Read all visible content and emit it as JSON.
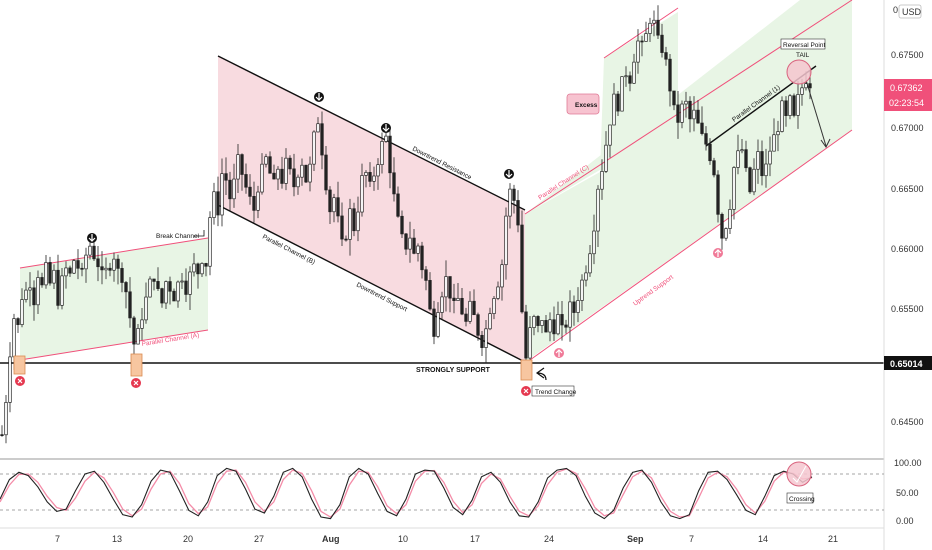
{
  "header": {
    "currency_label": "USD"
  },
  "colors": {
    "channel_green_fill": "#e8f5e5",
    "channel_pink_fill": "#f8dbe0",
    "pink_line": "#f0507a",
    "black_line": "#111111",
    "price_tag": "#f0507a",
    "support_tag": "#111111",
    "marker_red": "#e53950",
    "marker_pink": "#f07a98",
    "box_orange": "#f7c6a0",
    "stoch_k": "#222222",
    "stoch_d": "#f48ca8"
  },
  "chart_data": [
    {
      "type": "candlestick",
      "title": "",
      "yaxis": {
        "ticks": [
          "0.64500",
          "0.65000",
          "0.65500",
          "0.66000",
          "0.66500",
          "0.67000",
          "0.67500"
        ],
        "top_label": "0.",
        "range": [
          0.6425,
          0.6805
        ]
      },
      "xaxis": {
        "ticks": [
          "7",
          "13",
          "20",
          "27",
          "Aug",
          "10",
          "17",
          "24",
          "Sep",
          "7",
          "14",
          "21"
        ]
      },
      "last_price": "0.67362",
      "countdown": "02:23:54",
      "support_level": "0.65014",
      "support_label": "STRONGLY SUPPORT",
      "annotations": {
        "parallel_a": "Parallel Channel (A)",
        "parallel_b": "Parallel Channel (B)",
        "parallel_c": "Parallel Channel (C)",
        "parallel_1": "Parallel Channel (1)",
        "downtrend_resistance": "Downtrend Resistance",
        "downtrend_support": "Downtrend Support",
        "uptrend_support": "Uptrend Support",
        "break_channel": "Break Channel",
        "excess": "Excess",
        "trend_change": "Trend Change",
        "reversal_point": "Reversal Point",
        "tail": "TAIL"
      },
      "path": [
        [
          0,
          0.6442
        ],
        [
          4,
          0.6472
        ],
        [
          8,
          0.6512
        ],
        [
          12,
          0.654
        ],
        [
          16,
          0.6532
        ],
        [
          20,
          0.6558
        ],
        [
          24,
          0.6562
        ],
        [
          28,
          0.657
        ],
        [
          32,
          0.6555
        ],
        [
          36,
          0.6577
        ],
        [
          40,
          0.6565
        ],
        [
          44,
          0.658
        ],
        [
          48,
          0.6568
        ],
        [
          52,
          0.6576
        ],
        [
          56,
          0.6555
        ],
        [
          60,
          0.657
        ],
        [
          64,
          0.658
        ],
        [
          68,
          0.6575
        ],
        [
          72,
          0.6588
        ],
        [
          76,
          0.6582
        ],
        [
          80,
          0.6575
        ],
        [
          84,
          0.6592
        ],
        [
          88,
          0.66
        ],
        [
          92,
          0.6592
        ],
        [
          96,
          0.6585
        ],
        [
          100,
          0.6574
        ],
        [
          104,
          0.6578
        ],
        [
          108,
          0.6585
        ],
        [
          112,
          0.6592
        ],
        [
          116,
          0.6578
        ],
        [
          120,
          0.6575
        ],
        [
          124,
          0.6562
        ],
        [
          128,
          0.654
        ],
        [
          132,
          0.6518
        ],
        [
          136,
          0.6526
        ],
        [
          140,
          0.6542
        ],
        [
          144,
          0.6555
        ],
        [
          148,
          0.6568
        ],
        [
          152,
          0.6575
        ],
        [
          156,
          0.656
        ],
        [
          160,
          0.6552
        ],
        [
          164,
          0.657
        ],
        [
          168,
          0.6565
        ],
        [
          172,
          0.6558
        ],
        [
          176,
          0.6568
        ],
        [
          180,
          0.6575
        ],
        [
          184,
          0.6565
        ],
        [
          188,
          0.6575
        ],
        [
          192,
          0.6582
        ],
        [
          196,
          0.6578
        ],
        [
          200,
          0.659
        ],
        [
          204,
          0.6585
        ],
        [
          208,
          0.6624
        ],
        [
          212,
          0.664
        ],
        [
          216,
          0.663
        ],
        [
          220,
          0.666
        ],
        [
          224,
          0.6655
        ],
        [
          228,
          0.664
        ],
        [
          232,
          0.6652
        ],
        [
          236,
          0.667
        ],
        [
          240,
          0.666
        ],
        [
          244,
          0.6648
        ],
        [
          248,
          0.6638
        ],
        [
          252,
          0.663
        ],
        [
          256,
          0.665
        ],
        [
          260,
          0.6662
        ],
        [
          264,
          0.6672
        ],
        [
          268,
          0.666
        ],
        [
          272,
          0.665
        ],
        [
          276,
          0.6665
        ],
        [
          280,
          0.6655
        ],
        [
          284,
          0.6668
        ],
        [
          288,
          0.666
        ],
        [
          292,
          0.665
        ],
        [
          296,
          0.6662
        ],
        [
          300,
          0.667
        ],
        [
          304,
          0.6655
        ],
        [
          308,
          0.6665
        ],
        [
          312,
          0.669
        ],
        [
          316,
          0.6705
        ],
        [
          320,
          0.668
        ],
        [
          324,
          0.6652
        ],
        [
          328,
          0.663
        ],
        [
          332,
          0.664
        ],
        [
          336,
          0.662
        ],
        [
          340,
          0.66
        ],
        [
          344,
          0.661
        ],
        [
          348,
          0.6628
        ],
        [
          352,
          0.6615
        ],
        [
          356,
          0.6632
        ],
        [
          360,
          0.6655
        ],
        [
          364,
          0.666
        ],
        [
          368,
          0.6648
        ],
        [
          372,
          0.666
        ],
        [
          376,
          0.6672
        ],
        [
          380,
          0.6684
        ],
        [
          384,
          0.669
        ],
        [
          388,
          0.6665
        ],
        [
          392,
          0.664
        ],
        [
          396,
          0.662
        ],
        [
          400,
          0.6605
        ],
        [
          404,
          0.66
        ],
        [
          408,
          0.6608
        ],
        [
          412,
          0.6592
        ],
        [
          416,
          0.66
        ],
        [
          420,
          0.6582
        ],
        [
          424,
          0.657
        ],
        [
          428,
          0.6545
        ],
        [
          432,
          0.653
        ],
        [
          436,
          0.655
        ],
        [
          440,
          0.6562
        ],
        [
          444,
          0.6572
        ],
        [
          448,
          0.656
        ],
        [
          452,
          0.6548
        ],
        [
          456,
          0.6555
        ],
        [
          460,
          0.6545
        ],
        [
          464,
          0.6535
        ],
        [
          468,
          0.6548
        ],
        [
          472,
          0.654
        ],
        [
          476,
          0.6528
        ],
        [
          480,
          0.652
        ],
        [
          484,
          0.653
        ],
        [
          488,
          0.6548
        ],
        [
          492,
          0.656
        ],
        [
          496,
          0.657
        ],
        [
          500,
          0.6585
        ],
        [
          504,
          0.6625
        ],
        [
          508,
          0.6645
        ],
        [
          512,
          0.6638
        ],
        [
          516,
          0.662
        ],
        [
          520,
          0.6545
        ],
        [
          524,
          0.6506
        ],
        [
          528,
          0.6528
        ],
        [
          532,
          0.6538
        ],
        [
          536,
          0.653
        ],
        [
          540,
          0.654
        ],
        [
          544,
          0.6525
        ],
        [
          548,
          0.6538
        ],
        [
          552,
          0.6532
        ],
        [
          556,
          0.654
        ],
        [
          560,
          0.6528
        ],
        [
          564,
          0.6535
        ],
        [
          568,
          0.6548
        ],
        [
          572,
          0.6545
        ],
        [
          576,
          0.6558
        ],
        [
          580,
          0.657
        ],
        [
          584,
          0.6582
        ],
        [
          588,
          0.6598
        ],
        [
          592,
          0.6618
        ],
        [
          596,
          0.665
        ],
        [
          600,
          0.6665
        ],
        [
          604,
          0.6685
        ],
        [
          608,
          0.6705
        ],
        [
          612,
          0.6722
        ],
        [
          616,
          0.6718
        ],
        [
          620,
          0.6735
        ],
        [
          624,
          0.6745
        ],
        [
          628,
          0.674
        ],
        [
          632,
          0.6758
        ],
        [
          636,
          0.677
        ],
        [
          640,
          0.6765
        ],
        [
          644,
          0.6775
        ],
        [
          648,
          0.679
        ],
        [
          652,
          0.6785
        ],
        [
          656,
          0.677
        ],
        [
          660,
          0.6765
        ],
        [
          664,
          0.6752
        ],
        [
          668,
          0.6732
        ],
        [
          672,
          0.6712
        ],
        [
          676,
          0.6705
        ],
        [
          680,
          0.6715
        ],
        [
          684,
          0.6718
        ],
        [
          688,
          0.6705
        ],
        [
          692,
          0.671
        ],
        [
          696,
          0.67
        ],
        [
          700,
          0.669
        ],
        [
          704,
          0.6685
        ],
        [
          708,
          0.6675
        ],
        [
          712,
          0.6662
        ],
        [
          716,
          0.663
        ],
        [
          720,
          0.6608
        ],
        [
          724,
          0.6618
        ],
        [
          728,
          0.6635
        ],
        [
          732,
          0.6665
        ],
        [
          736,
          0.6675
        ],
        [
          740,
          0.668
        ],
        [
          744,
          0.666
        ],
        [
          748,
          0.6645
        ],
        [
          752,
          0.6662
        ],
        [
          756,
          0.6675
        ],
        [
          760,
          0.666
        ],
        [
          764,
          0.6665
        ],
        [
          768,
          0.668
        ],
        [
          772,
          0.669
        ],
        [
          776,
          0.67
        ],
        [
          780,
          0.6715
        ],
        [
          784,
          0.6705
        ],
        [
          788,
          0.672
        ],
        [
          792,
          0.6705
        ],
        [
          796,
          0.6722
        ],
        [
          800,
          0.6732
        ],
        [
          804,
          0.674
        ],
        [
          808,
          0.6736
        ]
      ]
    },
    {
      "type": "line",
      "title": "",
      "indicator": "stochastic",
      "yaxis": {
        "ticks": [
          "100.00",
          "50.00",
          "0.00"
        ],
        "range": [
          -10,
          110
        ],
        "bands": [
          20,
          80
        ]
      },
      "annotation": "Crossing",
      "series": [
        {
          "values": [
            40,
            75,
            88,
            82,
            62,
            35,
            18,
            22,
            55,
            85,
            90,
            70,
            40,
            12,
            8,
            30,
            72,
            92,
            88,
            55,
            20,
            10,
            35,
            82,
            95,
            90,
            58,
            22,
            15,
            45,
            88,
            95,
            80,
            40,
            8,
            5,
            30,
            80,
            95,
            85,
            50,
            18,
            10,
            40,
            85,
            92,
            90,
            60,
            25,
            12,
            38,
            80,
            88,
            70,
            35,
            10,
            8,
            35,
            78,
            92,
            95,
            82,
            45,
            15,
            5,
            20,
            60,
            88,
            92,
            70,
            35,
            10,
            5,
            12,
            55,
            88,
            90,
            75,
            48,
            20,
            12,
            45,
            82,
            90,
            85,
            70,
            80
          ]
        },
        {
          "values": [
            35,
            65,
            84,
            85,
            70,
            45,
            25,
            20,
            42,
            72,
            88,
            78,
            52,
            22,
            10,
            22,
            58,
            85,
            90,
            68,
            32,
            14,
            26,
            68,
            90,
            92,
            70,
            35,
            18,
            35,
            75,
            92,
            86,
            55,
            18,
            8,
            22,
            65,
            90,
            88,
            62,
            28,
            14,
            30,
            72,
            90,
            91,
            70,
            36,
            16,
            30,
            68,
            85,
            76,
            45,
            18,
            10,
            28,
            66,
            88,
            94,
            86,
            58,
            25,
            10,
            15,
            48,
            80,
            90,
            78,
            45,
            18,
            8,
            10,
            42,
            78,
            88,
            80,
            58,
            30,
            15,
            36,
            72,
            88,
            86,
            76,
            78
          ]
        }
      ]
    }
  ]
}
